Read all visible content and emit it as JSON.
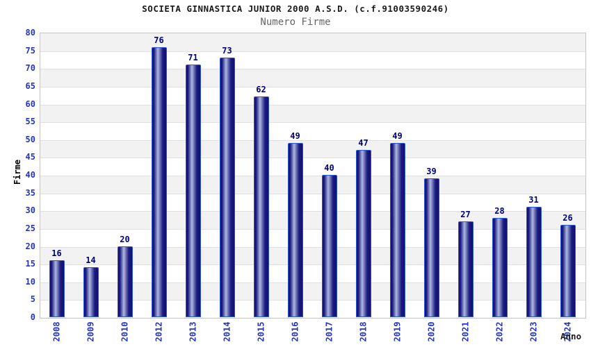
{
  "header": {
    "title": "SOCIETA GINNASTICA JUNIOR 2000 A.S.D. (c.f.91003590246)",
    "subtitle": "Numero Firme"
  },
  "chart_data": {
    "type": "bar",
    "title": "SOCIETA GINNASTICA JUNIOR 2000 A.S.D. (c.f.91003590246)",
    "subtitle": "Numero Firme",
    "xlabel": "Anno",
    "ylabel": "Firme",
    "categories": [
      "2008",
      "2009",
      "2010",
      "2012",
      "2013",
      "2014",
      "2015",
      "2016",
      "2017",
      "2018",
      "2019",
      "2020",
      "2021",
      "2022",
      "2023",
      "2024"
    ],
    "values": [
      16,
      14,
      20,
      76,
      71,
      73,
      62,
      49,
      40,
      47,
      49,
      39,
      27,
      28,
      31,
      26
    ],
    "ylim": [
      0,
      80
    ],
    "ytick_step": 5,
    "grid": true,
    "legend_position": "none",
    "value_labels_shown": true,
    "colors": {
      "tick_label": "#2233cc",
      "value_label": "#000080",
      "axis_title": "#000000",
      "title_text": "#1a1a1a",
      "subtitle_text": "#666666",
      "band_gray": "#f2f2f2",
      "band_white": "#ffffff",
      "gridline": "#e0e0e0",
      "plot_border": "#c4c4c4",
      "bar_border": "#2e55d4",
      "bar_edge": "#10106e",
      "bar_mid": "#1c1c82",
      "bar_highlight": "#aeb8de"
    }
  }
}
